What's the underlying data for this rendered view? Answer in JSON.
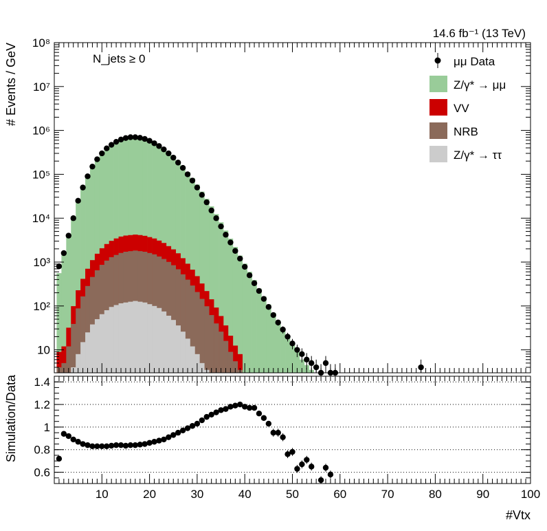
{
  "chart_data": [
    {
      "type": "bar",
      "title": "",
      "lumi_label": "14.6 fb⁻¹ (13 TeV)",
      "category_label": "N_jets ≥ 0",
      "ylabel": "# Events / GeV",
      "yscale": "log",
      "ylim": [
        3,
        100000000
      ],
      "xlim": [
        0,
        100
      ],
      "y_tick_labels": [
        "10",
        "10²",
        "10³",
        "10⁴",
        "10⁵",
        "10⁶",
        "10⁷",
        "10⁸"
      ],
      "legend_position": "top-right",
      "legend": [
        {
          "label": "μμ Data",
          "kind": "marker"
        },
        {
          "label": "Z/γ* → μμ",
          "kind": "fill",
          "color": "#99cc99"
        },
        {
          "label": "VV",
          "kind": "fill",
          "color": "#cc0000"
        },
        {
          "label": "NRB",
          "kind": "fill",
          "color": "#8b6a5a"
        },
        {
          "label": "Z/γ* → ττ",
          "kind": "fill",
          "color": "#cccccc"
        }
      ],
      "x": [
        1,
        2,
        3,
        4,
        5,
        6,
        7,
        8,
        9,
        10,
        11,
        12,
        13,
        14,
        15,
        16,
        17,
        18,
        19,
        20,
        21,
        22,
        23,
        24,
        25,
        26,
        27,
        28,
        29,
        30,
        31,
        32,
        33,
        34,
        35,
        36,
        37,
        38,
        39,
        40,
        41,
        42,
        43,
        44,
        45,
        46,
        47,
        48,
        49,
        50,
        51,
        52,
        53,
        54,
        55,
        56,
        57,
        58,
        59,
        60,
        61,
        62,
        63,
        64,
        65,
        66,
        67,
        68,
        69,
        70,
        71,
        72,
        73,
        74,
        75,
        76,
        77
      ],
      "series": [
        {
          "name": "μμ Data",
          "type": "points",
          "values": [
            800,
            1600,
            4000,
            10000,
            25000,
            50000,
            90000,
            150000,
            220000,
            300000,
            390000,
            470000,
            550000,
            620000,
            670000,
            700000,
            700000,
            680000,
            640000,
            580000,
            510000,
            440000,
            370000,
            300000,
            240000,
            185000,
            140000,
            100000,
            72000,
            50000,
            34000,
            23000,
            15000,
            10000,
            6500,
            4200,
            2800,
            1800,
            1200,
            780,
            500,
            330,
            220,
            145,
            95,
            62,
            42,
            29,
            20,
            14,
            10,
            8,
            6,
            5,
            4,
            3,
            5,
            3,
            3,
            null,
            null,
            null,
            null,
            null,
            null,
            null,
            null,
            null,
            null,
            null,
            null,
            null,
            null,
            null,
            null,
            null,
            4
          ]
        },
        {
          "name": "Z/γ* → μμ",
          "color": "#99cc99",
          "values": [
            550,
            1450,
            3800,
            9500,
            23000,
            46000,
            84000,
            140000,
            205000,
            280000,
            365000,
            445000,
            520000,
            590000,
            640000,
            680000,
            690000,
            675000,
            640000,
            585000,
            520000,
            450000,
            380000,
            310000,
            250000,
            195000,
            150000,
            112000,
            82000,
            58000,
            40000,
            27500,
            18500,
            12300,
            8000,
            5200,
            3400,
            2200,
            1400,
            920,
            600,
            390,
            250,
            165,
            108,
            70,
            46,
            30,
            20,
            13,
            9,
            6,
            4.5,
            3.5,
            null,
            null,
            null,
            null,
            null,
            null,
            null,
            null,
            null,
            null,
            null,
            null,
            null,
            null,
            null,
            null,
            null,
            null,
            null,
            null,
            null,
            null,
            null
          ]
        },
        {
          "name": "VV",
          "color": "#cc0000",
          "values": [
            5,
            7,
            20,
            60,
            140,
            250,
            420,
            650,
            900,
            1200,
            1500,
            1750,
            2000,
            2200,
            2300,
            2350,
            2400,
            2350,
            2250,
            2100,
            1950,
            1750,
            1550,
            1300,
            1100,
            900,
            700,
            520,
            380,
            270,
            180,
            120,
            80,
            52,
            33,
            20,
            12,
            7,
            4.5,
            3,
            null,
            null,
            null,
            null,
            null,
            null,
            null,
            null,
            null,
            null,
            null,
            null,
            null,
            null,
            null,
            null,
            null,
            null,
            null,
            null,
            null,
            null,
            null,
            null,
            null,
            null,
            null,
            null,
            null,
            null,
            null,
            null,
            null,
            null,
            null,
            null,
            null
          ]
        },
        {
          "name": "NRB",
          "color": "#8b6a5a",
          "values": [
            4,
            5,
            12,
            35,
            80,
            150,
            260,
            420,
            600,
            800,
            1000,
            1200,
            1350,
            1500,
            1600,
            1650,
            1700,
            1650,
            1600,
            1500,
            1400,
            1250,
            1100,
            950,
            800,
            650,
            500,
            380,
            280,
            200,
            140,
            95,
            62,
            40,
            26,
            16,
            9,
            5.5,
            3.5,
            null,
            null,
            null,
            null,
            null,
            null,
            null,
            null,
            null,
            null,
            null,
            null,
            null,
            null,
            null,
            null,
            null,
            null,
            null,
            null,
            null,
            null,
            null,
            null,
            null,
            null,
            null,
            null,
            null,
            null,
            null,
            null,
            null,
            null,
            null,
            null,
            null,
            null
          ]
        },
        {
          "name": "Z/γ* → ττ",
          "color": "#cccccc",
          "values": [
            null,
            null,
            null,
            4,
            8,
            15,
            25,
            38,
            50,
            65,
            80,
            95,
            105,
            115,
            120,
            125,
            130,
            125,
            120,
            110,
            100,
            90,
            75,
            60,
            48,
            36,
            26,
            18,
            12,
            8,
            5,
            3.5,
            null,
            null,
            null,
            null,
            null,
            null,
            null,
            null,
            null,
            null,
            null,
            null,
            null,
            null,
            null,
            null,
            null,
            null,
            null,
            null,
            null,
            null,
            null,
            null,
            null,
            null,
            null,
            null,
            null,
            null,
            null,
            null,
            null,
            null,
            null,
            null,
            null,
            null,
            null,
            null,
            null,
            null,
            null,
            null,
            null
          ]
        }
      ]
    },
    {
      "type": "scatter",
      "xlabel": "#Vtx",
      "ylabel": "Simulation/Data",
      "xlim": [
        0,
        100
      ],
      "ylim": [
        0.5,
        1.45
      ],
      "x_tick_labels": [
        "10",
        "20",
        "30",
        "40",
        "50",
        "60",
        "70",
        "80",
        "90",
        "100"
      ],
      "y_tick_labels": [
        "0.6",
        "0.8",
        "1",
        "1.2",
        "1.4"
      ],
      "grid": "horizontal dotted",
      "x": [
        1,
        2,
        3,
        4,
        5,
        6,
        7,
        8,
        9,
        10,
        11,
        12,
        13,
        14,
        15,
        16,
        17,
        18,
        19,
        20,
        21,
        22,
        23,
        24,
        25,
        26,
        27,
        28,
        29,
        30,
        31,
        32,
        33,
        34,
        35,
        36,
        37,
        38,
        39,
        40,
        41,
        42,
        43,
        44,
        45,
        46,
        47,
        48,
        49,
        50,
        51,
        52,
        53,
        54,
        55,
        56,
        57,
        58
      ],
      "y": [
        0.72,
        0.94,
        0.92,
        0.89,
        0.87,
        0.85,
        0.84,
        0.83,
        0.83,
        0.83,
        0.83,
        0.835,
        0.84,
        0.84,
        0.835,
        0.84,
        0.84,
        0.845,
        0.85,
        0.86,
        0.87,
        0.88,
        0.89,
        0.91,
        0.93,
        0.95,
        0.97,
        0.99,
        1.01,
        1.03,
        1.06,
        1.09,
        1.11,
        1.13,
        1.15,
        1.16,
        1.18,
        1.19,
        1.2,
        1.18,
        1.17,
        1.17,
        1.12,
        1.08,
        1.03,
        0.95,
        0.95,
        0.91,
        0.76,
        0.78,
        0.63,
        0.67,
        0.71,
        0.65,
        null,
        0.53,
        0.64,
        0.58
      ]
    }
  ]
}
